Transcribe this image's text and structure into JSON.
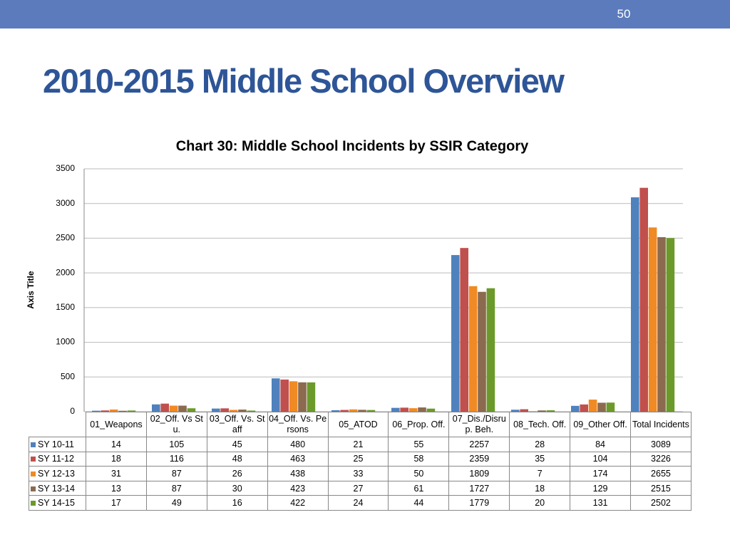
{
  "page_number": "50",
  "slide_title": "2010-2015 Middle School Overview",
  "chart_data": {
    "type": "bar",
    "title": "Chart 30: Middle School Incidents by SSIR Category",
    "y_label": "Axis Title",
    "categories": [
      "01_Weapons",
      "02_Off. Vs Stu.",
      "03_Off. Vs. Staff",
      "04_Off. Vs. Persons",
      "05_ATOD",
      "06_Prop. Off.",
      "07_Dis./Disrup. Beh.",
      "08_Tech. Off.",
      "09_Other Off.",
      "Total Incidents"
    ],
    "series": [
      {
        "name": "SY 10-11",
        "color": "#4f81bd",
        "values": [
          14,
          105,
          45,
          480,
          21,
          55,
          2257,
          28,
          84,
          3089
        ]
      },
      {
        "name": "SY 11-12",
        "color": "#c0504d",
        "values": [
          18,
          116,
          48,
          463,
          25,
          58,
          2359,
          35,
          104,
          3226
        ]
      },
      {
        "name": "SY 12-13",
        "color": "#f08a24",
        "values": [
          31,
          87,
          26,
          438,
          33,
          50,
          1809,
          7,
          174,
          2655
        ]
      },
      {
        "name": "SY 13-14",
        "color": "#8c6a4f",
        "values": [
          13,
          87,
          30,
          423,
          27,
          61,
          1727,
          18,
          129,
          2515
        ]
      },
      {
        "name": "SY 14-15",
        "color": "#6b9a2a",
        "values": [
          17,
          49,
          16,
          422,
          24,
          44,
          1779,
          20,
          131,
          2502
        ]
      }
    ],
    "ylim": [
      0,
      3500
    ],
    "yticks": [
      0,
      500,
      1000,
      1500,
      2000,
      2500,
      3000,
      3500
    ],
    "grid": true
  }
}
